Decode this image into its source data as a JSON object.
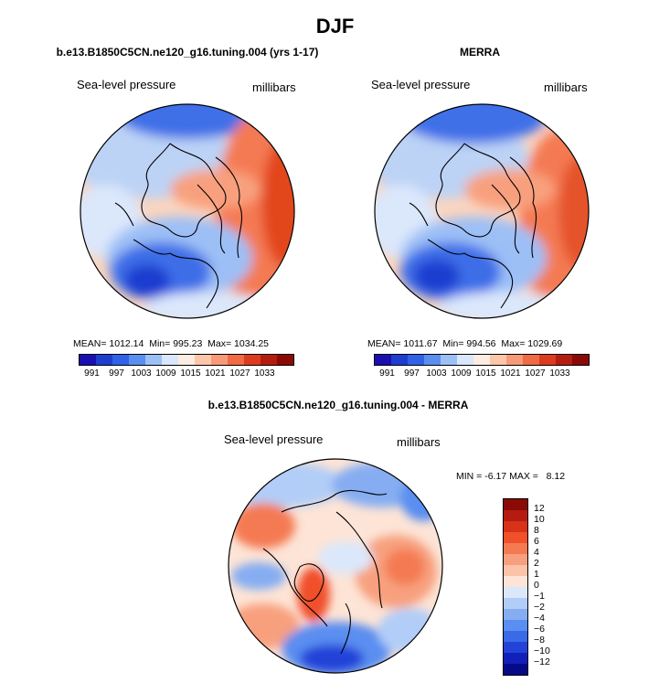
{
  "figure": {
    "title": "DJF"
  },
  "chart_data": [
    {
      "type": "heatmap",
      "panel": "model",
      "title": "b.e13.B1850C5CN.ne120_g16.tuning.004 (yrs 1-17)",
      "variable": "Sea-level pressure",
      "units": "millibars",
      "projection": "north polar stereographic",
      "stats": {
        "mean_label": "MEAN=",
        "mean": "1012.14",
        "min_label": "Min=",
        "min": "995.23",
        "max_label": "Max=",
        "max": "1034.25"
      },
      "levels": [
        "991",
        "997",
        "1003",
        "1009",
        "1015",
        "1021",
        "1027",
        "1033"
      ],
      "palette": [
        "#1a0fb0",
        "#1e3ed0",
        "#2f62e6",
        "#5a8ff0",
        "#9cbff6",
        "#d8e7fb",
        "#fdece2",
        "#fcc7a9",
        "#f89a77",
        "#f06a44",
        "#dd3b1f",
        "#b51c10",
        "#8a0a05"
      ]
    },
    {
      "type": "heatmap",
      "panel": "obs",
      "title": "MERRA",
      "variable": "Sea-level pressure",
      "units": "millibars",
      "projection": "north polar stereographic",
      "stats": {
        "mean_label": "MEAN=",
        "mean": "1011.67",
        "min_label": "Min=",
        "min": "994.56",
        "max_label": "Max=",
        "max": "1029.69"
      },
      "levels": [
        "991",
        "997",
        "1003",
        "1009",
        "1015",
        "1021",
        "1027",
        "1033"
      ],
      "palette": [
        "#1a0fb0",
        "#1e3ed0",
        "#2f62e6",
        "#5a8ff0",
        "#9cbff6",
        "#d8e7fb",
        "#fdece2",
        "#fcc7a9",
        "#f89a77",
        "#f06a44",
        "#dd3b1f",
        "#b51c10",
        "#8a0a05"
      ]
    },
    {
      "type": "heatmap",
      "panel": "diff",
      "title": "b.e13.B1850C5CN.ne120_g16.tuning.004 - MERRA",
      "variable": "Sea-level pressure",
      "units": "millibars",
      "projection": "north polar stereographic",
      "stats": {
        "min_label": "MIN =",
        "min": "-6.17",
        "max_label": "MAX =",
        "max": "8.12"
      },
      "levels": [
        "12",
        "10",
        "8",
        "6",
        "4",
        "2",
        "1",
        "0",
        "−1",
        "−2",
        "−4",
        "−6",
        "−8",
        "−10",
        "−12"
      ],
      "palette": [
        "#8b0a05",
        "#b51c10",
        "#d83218",
        "#f0502a",
        "#f47a52",
        "#f8a07e",
        "#fbc3a8",
        "#fde4d6",
        "#dbe8fb",
        "#b2cdf7",
        "#86adf2",
        "#5a8ef0",
        "#3a6ae8",
        "#2343d8",
        "#1020b8",
        "#060a88"
      ]
    }
  ]
}
